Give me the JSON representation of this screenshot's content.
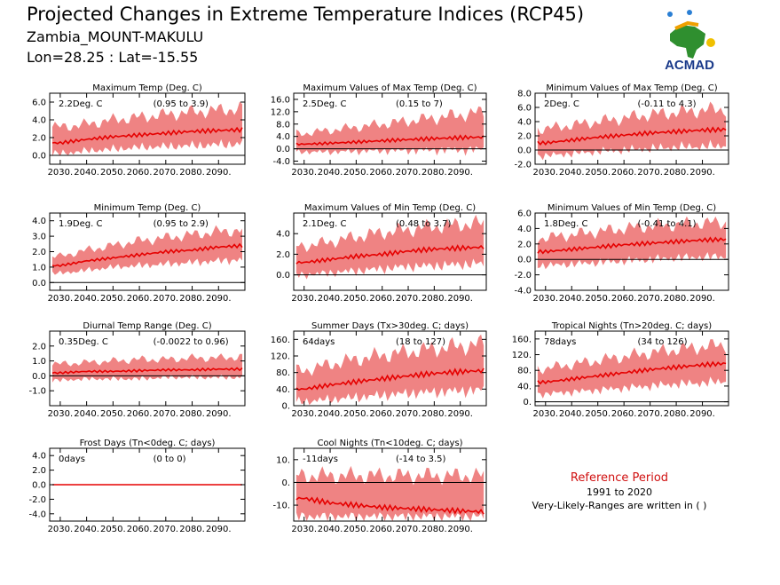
{
  "header": {
    "title": "Projected Changes in Extreme Temperature Indices (RCP45)",
    "region": "Zambia_MOUNT-MAKULU",
    "coords": "Lon=28.25 : Lat=-15.55"
  },
  "logo": {
    "text": "ACMAD",
    "icon": "africa-map-logo-icon"
  },
  "reference": {
    "title": "Reference Period",
    "years": "1991 to 2020",
    "note": "Very-Likely-Ranges are written in ( )"
  },
  "colors": {
    "band": "#ef8383",
    "line": "#e60000",
    "zero_line": "#000000",
    "title_red": "#d01010"
  },
  "chart_data": [
    {
      "type": "area",
      "title": "Maximum Temp (Deg. C)",
      "summary": "2.2Deg. C",
      "range": "(0.95 to 3.9)",
      "xticks": [
        "2030.",
        "2040.",
        "2050.",
        "2060.",
        "2070.",
        "2080.",
        "2090."
      ],
      "xlim": [
        2026,
        2100
      ],
      "ylim": [
        -1,
        7
      ],
      "yticks": [
        0,
        2,
        4,
        6
      ],
      "ytick_labels": [
        "0.0",
        "2.0",
        "4.0",
        "6.0"
      ],
      "x": [
        2030,
        2040,
        2050,
        2060,
        2070,
        2080,
        2090,
        2100
      ],
      "median": [
        1.4,
        1.8,
        2.1,
        2.3,
        2.5,
        2.7,
        2.8,
        2.9
      ],
      "lower": [
        0.2,
        0.5,
        0.7,
        0.9,
        1.0,
        1.1,
        1.2,
        1.3
      ],
      "upper": [
        3.2,
        3.5,
        4.0,
        4.3,
        4.6,
        4.9,
        5.1,
        5.3
      ]
    },
    {
      "type": "area",
      "title": "Maximum Values of Max Temp (Deg. C)",
      "summary": "2.5Deg. C",
      "range": "(0.15 to 7)",
      "xticks": [
        "2030.",
        "2040.",
        "2050.",
        "2060.",
        "2070.",
        "2080.",
        "2090."
      ],
      "xlim": [
        2026,
        2100
      ],
      "ylim": [
        -5,
        18
      ],
      "yticks": [
        -4,
        0,
        4,
        8,
        12,
        16
      ],
      "ytick_labels": [
        "-4.0",
        "0.0",
        "4.0",
        "8.0",
        "12.0",
        "16.0"
      ],
      "x": [
        2030,
        2040,
        2050,
        2060,
        2070,
        2080,
        2090,
        2100
      ],
      "median": [
        1.5,
        1.8,
        2.2,
        2.6,
        3.0,
        3.3,
        3.6,
        3.8
      ],
      "lower": [
        -1.0,
        -1.0,
        -0.8,
        -0.6,
        -0.5,
        -0.4,
        -0.3,
        -0.2
      ],
      "upper": [
        5.0,
        6.0,
        7.0,
        8.0,
        9.0,
        10.0,
        11.0,
        12.0
      ]
    },
    {
      "type": "area",
      "title": "Minimum Values of Max Temp (Deg. C)",
      "summary": "2Deg. C",
      "range": "(-0.11 to 4.3)",
      "xticks": [
        "2030.",
        "2040.",
        "2050.",
        "2060.",
        "2070.",
        "2080.",
        "2090."
      ],
      "xlim": [
        2026,
        2100
      ],
      "ylim": [
        -2,
        8
      ],
      "yticks": [
        -2,
        0,
        2,
        4,
        6,
        8
      ],
      "ytick_labels": [
        "-2.0",
        "0.0",
        "2.0",
        "4.0",
        "6.0",
        "8.0"
      ],
      "x": [
        2030,
        2040,
        2050,
        2060,
        2070,
        2080,
        2090,
        2100
      ],
      "median": [
        1.0,
        1.4,
        1.8,
        2.1,
        2.4,
        2.6,
        2.8,
        2.9
      ],
      "lower": [
        -0.8,
        -0.5,
        -0.2,
        0.0,
        0.2,
        0.4,
        0.5,
        0.6
      ],
      "upper": [
        3.0,
        3.5,
        4.0,
        4.5,
        5.0,
        5.3,
        5.6,
        5.8
      ]
    },
    {
      "type": "area",
      "title": "Minimum Temp (Deg. C)",
      "summary": "1.9Deg. C",
      "range": "(0.95 to 2.9)",
      "xticks": [
        "2030.",
        "2040.",
        "2050.",
        "2060.",
        "2070.",
        "2080.",
        "2090."
      ],
      "xlim": [
        2026,
        2100
      ],
      "ylim": [
        -0.5,
        4.5
      ],
      "yticks": [
        0,
        1,
        2,
        3,
        4
      ],
      "ytick_labels": [
        "0.0",
        "1.0",
        "2.0",
        "3.0",
        "4.0"
      ],
      "x": [
        2030,
        2040,
        2050,
        2060,
        2070,
        2080,
        2090,
        2100
      ],
      "median": [
        1.1,
        1.4,
        1.6,
        1.8,
        2.0,
        2.1,
        2.3,
        2.4
      ],
      "lower": [
        0.6,
        0.8,
        1.0,
        1.1,
        1.2,
        1.3,
        1.4,
        1.5
      ],
      "upper": [
        1.7,
        2.1,
        2.4,
        2.7,
        2.9,
        3.1,
        3.3,
        3.4
      ]
    },
    {
      "type": "area",
      "title": "Maximum Values of Min Temp (Deg. C)",
      "summary": "2.1Deg. C",
      "range": "(0.48 to 3.7)",
      "xticks": [
        "2030.",
        "2040.",
        "2050.",
        "2060.",
        "2070.",
        "2080.",
        "2090."
      ],
      "xlim": [
        2026,
        2100
      ],
      "ylim": [
        -1.5,
        6
      ],
      "yticks": [
        0,
        2,
        4
      ],
      "ytick_labels": [
        "0.0",
        "2.0",
        "4.0"
      ],
      "x": [
        2030,
        2040,
        2050,
        2060,
        2070,
        2080,
        2090,
        2100
      ],
      "median": [
        1.2,
        1.5,
        1.8,
        2.0,
        2.3,
        2.5,
        2.6,
        2.7
      ],
      "lower": [
        0.0,
        0.2,
        0.4,
        0.6,
        0.8,
        0.9,
        1.0,
        1.1
      ],
      "upper": [
        2.8,
        3.2,
        3.7,
        4.1,
        4.4,
        4.7,
        4.9,
        5.0
      ]
    },
    {
      "type": "area",
      "title": "Minimum Values of Min Temp (Deg. C)",
      "summary": "1.8Deg. C",
      "range": "(-0.41 to 4.1)",
      "xticks": [
        "2030.",
        "2040.",
        "2050.",
        "2060.",
        "2070.",
        "2080.",
        "2090."
      ],
      "xlim": [
        2026,
        2100
      ],
      "ylim": [
        -4,
        6
      ],
      "yticks": [
        -4,
        -2,
        0,
        2,
        4,
        6
      ],
      "ytick_labels": [
        "-4.0",
        "-2.0",
        "0.0",
        "2.0",
        "4.0",
        "6.0"
      ],
      "x": [
        2030,
        2040,
        2050,
        2060,
        2070,
        2080,
        2090,
        2100
      ],
      "median": [
        1.0,
        1.3,
        1.6,
        1.9,
        2.1,
        2.3,
        2.5,
        2.6
      ],
      "lower": [
        -0.8,
        -0.6,
        -0.4,
        -0.2,
        0.0,
        0.2,
        0.3,
        0.4
      ],
      "upper": [
        2.8,
        3.2,
        3.6,
        4.0,
        4.3,
        4.5,
        4.7,
        4.8
      ]
    },
    {
      "type": "area",
      "title": "Diurnal Temp Range (Deg. C)",
      "summary": "0.35Deg. C",
      "range": "(-0.0022 to 0.96)",
      "xticks": [
        "2030.",
        "2040.",
        "2050.",
        "2060.",
        "2070.",
        "2080.",
        "2090."
      ],
      "xlim": [
        2026,
        2100
      ],
      "ylim": [
        -2,
        3
      ],
      "yticks": [
        -1,
        0,
        1,
        2
      ],
      "ytick_labels": [
        "-1.0",
        "0.0",
        "1.0",
        "2.0"
      ],
      "x": [
        2030,
        2040,
        2050,
        2060,
        2070,
        2080,
        2090,
        2100
      ],
      "median": [
        0.2,
        0.3,
        0.3,
        0.35,
        0.4,
        0.4,
        0.45,
        0.45
      ],
      "lower": [
        -0.3,
        -0.2,
        -0.2,
        -0.2,
        -0.1,
        -0.1,
        -0.1,
        -0.1
      ],
      "upper": [
        0.8,
        0.9,
        1.0,
        1.1,
        1.1,
        1.2,
        1.2,
        1.3
      ]
    },
    {
      "type": "area",
      "title": "Summer Days (Tx>30deg. C; days)",
      "summary": "64days",
      "range": "(18 to 127)",
      "xticks": [
        "2030.",
        "2040.",
        "2050.",
        "2060.",
        "2070.",
        "2080.",
        "2090."
      ],
      "xlim": [
        2026,
        2100
      ],
      "ylim": [
        0,
        180
      ],
      "yticks": [
        0,
        40,
        80,
        120,
        160
      ],
      "ytick_labels": [
        "0.",
        "40.",
        "80.",
        "120.",
        "160."
      ],
      "x": [
        2030,
        2040,
        2050,
        2060,
        2070,
        2080,
        2090,
        2100
      ],
      "median": [
        40,
        50,
        58,
        65,
        72,
        78,
        82,
        85
      ],
      "lower": [
        10,
        15,
        20,
        25,
        30,
        33,
        36,
        38
      ],
      "upper": [
        85,
        100,
        112,
        122,
        130,
        138,
        144,
        150
      ]
    },
    {
      "type": "area",
      "title": "Tropical Nights (Tn>20deg. C; days)",
      "summary": "78days",
      "range": "(34 to 126)",
      "xticks": [
        "2030.",
        "2040.",
        "2050.",
        "2060.",
        "2070.",
        "2080.",
        "2090."
      ],
      "xlim": [
        2026,
        2100
      ],
      "ylim": [
        -10,
        180
      ],
      "yticks": [
        0,
        40,
        80,
        120,
        160
      ],
      "ytick_labels": [
        "0.",
        "40.",
        "80.",
        "120.",
        "160."
      ],
      "x": [
        2030,
        2040,
        2050,
        2060,
        2070,
        2080,
        2090,
        2100
      ],
      "median": [
        50,
        58,
        66,
        74,
        82,
        88,
        94,
        98
      ],
      "lower": [
        20,
        25,
        30,
        35,
        40,
        45,
        48,
        52
      ],
      "upper": [
        85,
        95,
        105,
        115,
        125,
        133,
        140,
        146
      ]
    },
    {
      "type": "area",
      "title": "Frost Days (Tn<0deg. C; days)",
      "summary": "0days",
      "range": "(0 to 0)",
      "xticks": [
        "2030.",
        "2040.",
        "2050.",
        "2060.",
        "2070.",
        "2080.",
        "2090."
      ],
      "xlim": [
        2026,
        2100
      ],
      "ylim": [
        -5,
        5
      ],
      "yticks": [
        -4,
        -2,
        0,
        2,
        4
      ],
      "ytick_labels": [
        "-4.0",
        "-2.0",
        "0.0",
        "2.0",
        "4.0"
      ],
      "x": [
        2030,
        2040,
        2050,
        2060,
        2070,
        2080,
        2090,
        2100
      ],
      "median": [
        0,
        0,
        0,
        0,
        0,
        0,
        0,
        0
      ],
      "lower": [
        0,
        0,
        0,
        0,
        0,
        0,
        0,
        0
      ],
      "upper": [
        0,
        0,
        0,
        0,
        0,
        0,
        0,
        0
      ]
    },
    {
      "type": "area",
      "title": "Cool Nights (Tn<10deg. C; days)",
      "summary": "-11days",
      "range": "(-14 to 3.5)",
      "xticks": [
        "2030.",
        "2040.",
        "2050.",
        "2060.",
        "2070.",
        "2080.",
        "2090."
      ],
      "xlim": [
        2026,
        2100
      ],
      "ylim": [
        -17,
        15
      ],
      "yticks": [
        -10,
        0,
        10
      ],
      "ytick_labels": [
        "-10.",
        "0.",
        "10."
      ],
      "x": [
        2030,
        2040,
        2050,
        2060,
        2070,
        2080,
        2090,
        2100
      ],
      "median": [
        -7,
        -9,
        -10,
        -11,
        -11.5,
        -12,
        -12.5,
        -13
      ],
      "lower": [
        -15,
        -15,
        -15,
        -15,
        -15,
        -15,
        -15,
        -15
      ],
      "upper": [
        3,
        3,
        3,
        3,
        3,
        3,
        3,
        3
      ]
    }
  ]
}
